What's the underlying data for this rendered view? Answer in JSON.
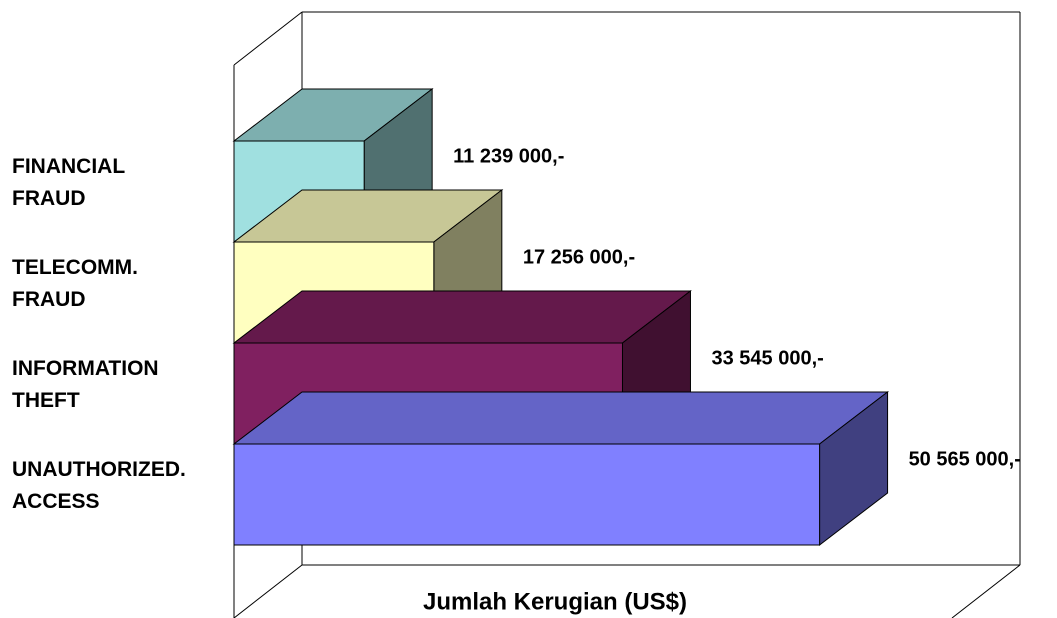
{
  "chart_data": {
    "type": "bar3d",
    "x_label": "Jumlah Kerugian (US$)",
    "categories": [
      [
        "FINANCIAL",
        "FRAUD"
      ],
      [
        "TELECOMM.",
        "FRAUD"
      ],
      [
        "INFORMATION",
        "THEFT"
      ],
      [
        "UNAUTHORIZED.",
        "ACCESS"
      ]
    ],
    "values": [
      11239000,
      17256000,
      33545000,
      50565000
    ],
    "value_labels": [
      "11 239 000,-",
      "17 256 000,-",
      "33 545 000,-",
      "50 565 000,-"
    ],
    "colors": [
      "#a0e0e0",
      "#ffffc0",
      "#802060",
      "#8080ff"
    ],
    "xlim": [
      0,
      62000000
    ]
  }
}
